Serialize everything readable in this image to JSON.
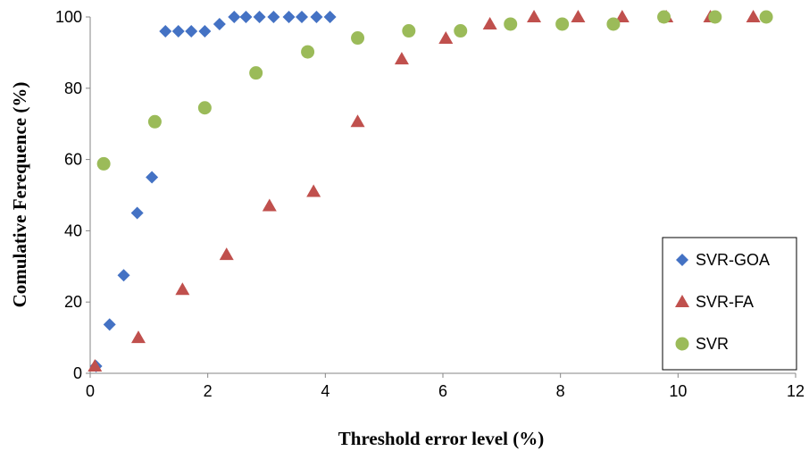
{
  "chart_data": {
    "type": "scatter",
    "title": "",
    "xlabel": "Threshold error level (%)",
    "ylabel": "Comulative Ferequence (%)",
    "xlim": [
      0,
      12
    ],
    "ylim": [
      0,
      100
    ],
    "xticks": [
      0,
      2,
      4,
      6,
      8,
      10,
      12
    ],
    "yticks": [
      0,
      20,
      40,
      60,
      80,
      100
    ],
    "grid": false,
    "legend_position": "bottom-right",
    "series": [
      {
        "name": "SVR-GOA",
        "marker": "diamond",
        "color": "#4472C4",
        "points": [
          [
            0.1,
            2
          ],
          [
            0.33,
            13.7
          ],
          [
            0.57,
            27.5
          ],
          [
            0.8,
            45
          ],
          [
            1.05,
            55
          ],
          [
            1.28,
            96
          ],
          [
            1.5,
            96
          ],
          [
            1.72,
            96
          ],
          [
            1.95,
            96
          ],
          [
            2.2,
            98
          ],
          [
            2.45,
            100
          ],
          [
            2.65,
            100
          ],
          [
            2.88,
            100
          ],
          [
            3.12,
            100
          ],
          [
            3.38,
            100
          ],
          [
            3.6,
            100
          ],
          [
            3.85,
            100
          ],
          [
            4.08,
            100
          ]
        ]
      },
      {
        "name": "SVR-FA",
        "marker": "triangle",
        "color": "#C0504D",
        "points": [
          [
            0.08,
            2
          ],
          [
            0.82,
            10
          ],
          [
            1.57,
            23.5
          ],
          [
            2.32,
            33.3
          ],
          [
            3.05,
            47
          ],
          [
            3.8,
            51
          ],
          [
            4.55,
            70.6
          ],
          [
            5.3,
            88.2
          ],
          [
            6.05,
            94
          ],
          [
            6.8,
            98
          ],
          [
            7.55,
            100
          ],
          [
            8.3,
            100
          ],
          [
            9.05,
            100
          ],
          [
            9.8,
            100
          ],
          [
            10.55,
            100
          ],
          [
            11.28,
            100
          ]
        ]
      },
      {
        "name": "SVR",
        "marker": "circle",
        "color": "#9BBB59",
        "points": [
          [
            0.23,
            58.8
          ],
          [
            1.1,
            70.6
          ],
          [
            1.95,
            74.5
          ],
          [
            2.82,
            84.3
          ],
          [
            3.7,
            90.2
          ],
          [
            4.55,
            94.1
          ],
          [
            5.42,
            96.1
          ],
          [
            6.3,
            96.1
          ],
          [
            7.15,
            98
          ],
          [
            8.03,
            98
          ],
          [
            8.9,
            98
          ],
          [
            9.76,
            100
          ],
          [
            10.63,
            100
          ],
          [
            11.5,
            100
          ]
        ]
      }
    ]
  }
}
